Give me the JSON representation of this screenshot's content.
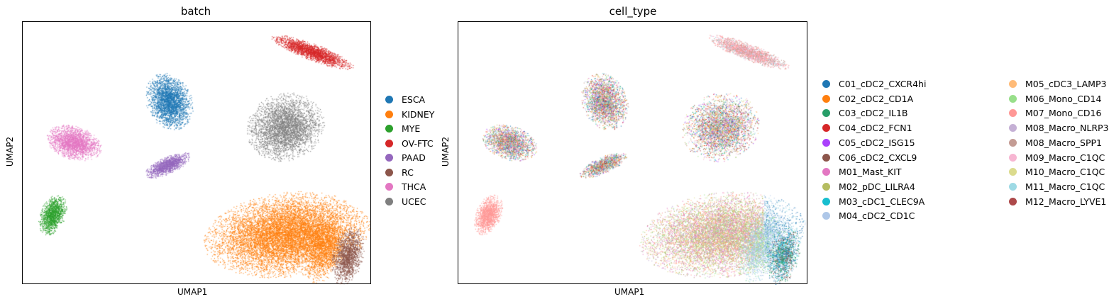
{
  "chart_data": [
    {
      "type": "scatter",
      "title": "batch",
      "xlabel": "UMAP1",
      "ylabel": "UMAP2",
      "legend": "right",
      "grid": false,
      "series": [
        {
          "name": "ESCA",
          "color": "#1f77b4"
        },
        {
          "name": "KIDNEY",
          "color": "#ff7f0e"
        },
        {
          "name": "MYE",
          "color": "#2ca02c"
        },
        {
          "name": "OV-FTC",
          "color": "#d62728"
        },
        {
          "name": "PAAD",
          "color": "#9467bd"
        },
        {
          "name": "RC",
          "color": "#8c564b"
        },
        {
          "name": "THCA",
          "color": "#e377c2"
        },
        {
          "name": "UCEC",
          "color": "#7f7f7f"
        }
      ]
    },
    {
      "type": "scatter",
      "title": "cell_type",
      "xlabel": "UMAP1",
      "ylabel": "UMAP2",
      "legend": "right",
      "grid": false,
      "series": [
        {
          "name": "C01_cDC2_CXCR4hi",
          "color": "#1f77b4"
        },
        {
          "name": "C02_cDC2_CD1A",
          "color": "#ff7f0e"
        },
        {
          "name": "C03_cDC2_IL1B",
          "color": "#279e68"
        },
        {
          "name": "C04_cDC2_FCN1",
          "color": "#d62728"
        },
        {
          "name": "C05_cDC2_ISG15",
          "color": "#aa40fc"
        },
        {
          "name": "C06_cDC2_CXCL9",
          "color": "#8c564b"
        },
        {
          "name": "M01_Mast_KIT",
          "color": "#e377c2"
        },
        {
          "name": "M02_pDC_LILRA4",
          "color": "#b5bd61"
        },
        {
          "name": "M03_cDC1_CLEC9A",
          "color": "#17becf"
        },
        {
          "name": "M04_cDC2_CD1C",
          "color": "#aec7e8"
        },
        {
          "name": "M05_cDC3_LAMP3",
          "color": "#ffbb78"
        },
        {
          "name": "M06_Mono_CD14",
          "color": "#98df8a"
        },
        {
          "name": "M07_Mono_CD16",
          "color": "#ff9896"
        },
        {
          "name": "M08_Macro_NLRP3",
          "color": "#c5b0d5"
        },
        {
          "name": "M08_Macro_SPP1",
          "color": "#c49c94"
        },
        {
          "name": "M09_Macro_C1QC",
          "color": "#f7b6d2"
        },
        {
          "name": "M10_Macro_C1QC",
          "color": "#dbdb8d"
        },
        {
          "name": "M11_Macro_C1QC",
          "color": "#9edae5"
        },
        {
          "name": "M12_Macro_LYVE1",
          "color": "#ad494a"
        }
      ]
    }
  ]
}
